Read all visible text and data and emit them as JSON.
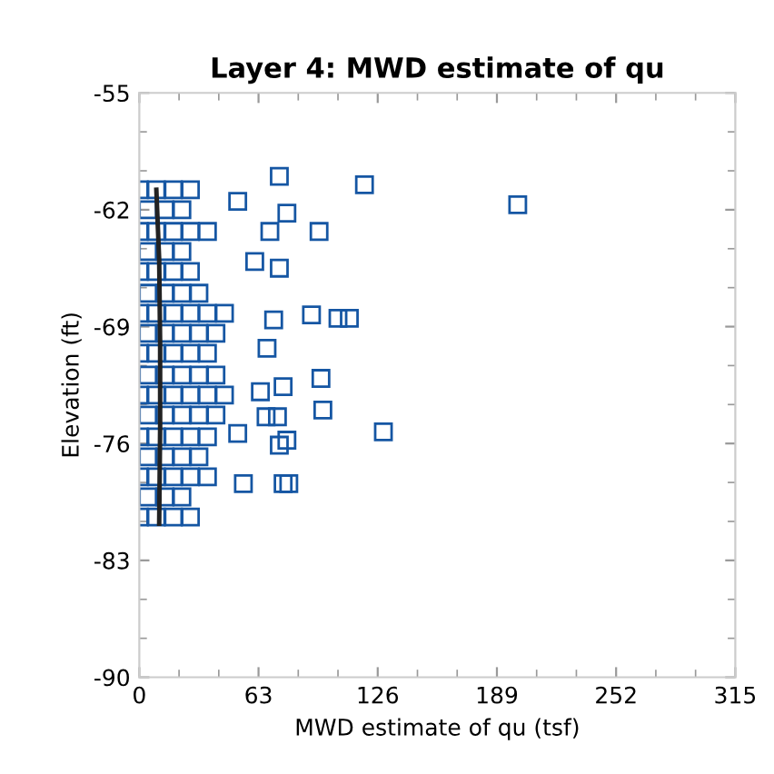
{
  "chart_data": {
    "type": "scatter",
    "title": "Layer 4: MWD estimate of qu",
    "xlabel": "MWD estimate of qu (tsf)",
    "ylabel": "Elevation (ft)",
    "xlim": [
      0,
      315
    ],
    "xticks": [
      0,
      63,
      126,
      189,
      252,
      315
    ],
    "ylim": [
      -90,
      -55
    ],
    "yticks": [
      -90,
      -83,
      -76,
      -69,
      -62,
      -55
    ],
    "grid": false,
    "marker": "square",
    "series": [
      {
        "color": "#1556a3",
        "x": [
          0,
          9,
          18,
          27,
          4.5,
          13.5,
          22.5,
          0,
          9,
          18,
          27,
          36,
          4.5,
          13.5,
          22.5,
          0,
          9,
          18,
          27,
          4.5,
          13.5,
          22.5,
          31.5,
          0,
          9,
          18,
          27,
          36,
          45,
          4.5,
          13.5,
          22.5,
          31.5,
          40.5,
          0,
          9,
          18,
          27,
          36,
          4.5,
          13.5,
          22.5,
          31.5,
          40.5,
          0,
          9,
          18,
          27,
          36,
          45,
          4.5,
          13.5,
          22.5,
          31.5,
          40.5,
          0,
          9,
          18,
          27,
          36,
          4.5,
          13.5,
          22.5,
          31.5,
          0,
          9,
          18,
          27,
          36,
          4.5,
          13.5,
          22.5,
          0,
          9,
          18,
          27,
          74,
          119,
          52,
          78,
          69,
          95,
          61,
          74,
          91,
          105,
          111,
          71,
          67.5,
          96,
          76,
          64,
          97,
          67,
          73,
          129,
          52,
          78,
          74,
          55,
          76,
          79,
          200
        ],
        "values": [
          -60.8,
          -60.8,
          -60.8,
          -60.8,
          -62.0,
          -62.0,
          -62.0,
          -63.3,
          -63.3,
          -63.3,
          -63.3,
          -63.3,
          -64.5,
          -64.5,
          -64.5,
          -65.7,
          -65.7,
          -65.7,
          -65.7,
          -67.0,
          -67.0,
          -67.0,
          -67.0,
          -68.2,
          -68.2,
          -68.2,
          -68.2,
          -68.2,
          -68.2,
          -69.4,
          -69.4,
          -69.4,
          -69.4,
          -69.4,
          -70.6,
          -70.6,
          -70.6,
          -70.6,
          -70.6,
          -71.9,
          -71.9,
          -71.9,
          -71.9,
          -71.9,
          -73.1,
          -73.1,
          -73.1,
          -73.1,
          -73.1,
          -73.1,
          -74.3,
          -74.3,
          -74.3,
          -74.3,
          -74.3,
          -75.6,
          -75.6,
          -75.6,
          -75.6,
          -75.6,
          -76.8,
          -76.8,
          -76.8,
          -76.8,
          -78.0,
          -78.0,
          -78.0,
          -78.0,
          -78.0,
          -79.2,
          -79.2,
          -79.2,
          -80.4,
          -80.4,
          -80.4,
          -80.4,
          -60.0,
          -60.5,
          -61.5,
          -62.2,
          -63.3,
          -63.3,
          -65.1,
          -65.5,
          -68.3,
          -68.5,
          -68.5,
          -68.6,
          -70.3,
          -72.1,
          -72.6,
          -72.9,
          -74.0,
          -74.4,
          -74.4,
          -75.3,
          -75.4,
          -75.8,
          -76.1,
          -78.4,
          -78.4,
          -78.4,
          -61.7
        ]
      },
      {
        "type": "line",
        "color": "#222222",
        "marker": "none",
        "x": [
          9,
          10.5,
          11,
          11,
          10.5
        ],
        "values": [
          -60.8,
          -65,
          -70,
          -75,
          -80.8
        ]
      }
    ]
  }
}
